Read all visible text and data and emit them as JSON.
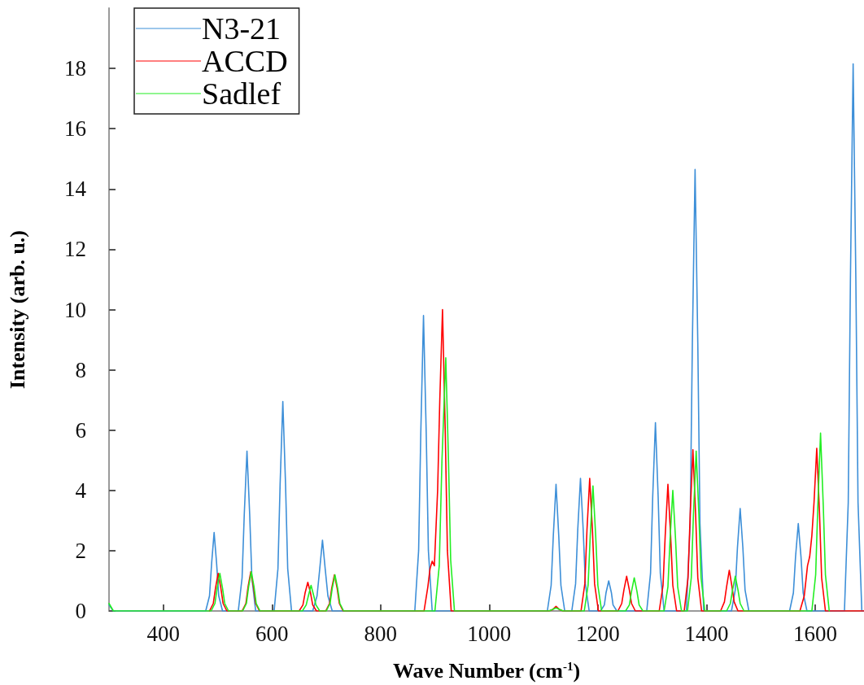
{
  "chart_data": {
    "type": "line",
    "xlabel": "Wave Number (cm$^{-1}$)",
    "ylabel": "Intensity (arb. u.)",
    "xlim": [
      300,
      1690
    ],
    "xticks": [
      400,
      600,
      800,
      1000,
      1200,
      1400,
      1600
    ],
    "ylim": [
      0,
      20
    ],
    "yticks": [
      0,
      2,
      4,
      6,
      8,
      10,
      12,
      14,
      16,
      18
    ],
    "grid": false,
    "legend": "top left",
    "marker": "none",
    "line_style": "solid",
    "series": [
      {
        "name": "N3-21",
        "color": "#3d8fd8",
        "x": [
          300,
          308,
          478,
          485,
          489,
          493.5,
          498,
          502,
          509,
          538,
          545,
          549,
          554,
          559,
          563,
          570,
          604,
          611,
          615,
          620,
          625,
          629,
          636,
          675,
          683,
          688,
          693,
          698,
          703,
          711,
          863,
          870,
          874,
          879,
          884,
          888,
          895,
          1107,
          1114,
          1118,
          1123,
          1128,
          1132,
          1139,
          1152,
          1159,
          1163,
          1168,
          1173,
          1177,
          1184,
          1205,
          1212,
          1215,
          1220,
          1225,
          1228,
          1235,
          1290,
          1297,
          1301,
          1306,
          1311,
          1315,
          1322,
          1363,
          1370,
          1374,
          1379,
          1384,
          1388,
          1395,
          1446,
          1453,
          1457,
          1462,
          1467,
          1471,
          1478,
          1553,
          1560,
          1564,
          1569,
          1574,
          1578,
          1585,
          1654,
          1661,
          1665,
          1670,
          1675,
          1679,
          1686,
          1690
        ],
        "values": [
          0.2,
          0,
          0,
          0.5,
          1.6,
          2.6,
          1.6,
          0.5,
          0,
          0,
          1.1,
          3.2,
          5.3,
          3.2,
          1.1,
          0,
          0,
          1.4,
          4.2,
          6.95,
          4.2,
          1.4,
          0,
          0,
          0.5,
          1.4,
          2.35,
          1.4,
          0.5,
          0,
          0,
          2.0,
          5.9,
          9.8,
          5.9,
          2.0,
          0,
          0,
          0.85,
          2.5,
          4.2,
          2.5,
          0.85,
          0,
          0,
          0.9,
          2.7,
          4.4,
          2.7,
          0.9,
          0,
          0,
          0.2,
          0.6,
          1.0,
          0.6,
          0.2,
          0,
          0,
          1.25,
          3.8,
          6.25,
          3.8,
          1.25,
          0,
          0,
          2.9,
          8.9,
          14.65,
          8.9,
          2.9,
          0,
          0,
          0.7,
          2.1,
          3.4,
          2.1,
          0.7,
          0,
          0,
          0.6,
          1.8,
          2.9,
          1.8,
          0.6,
          0,
          0,
          3.6,
          11.0,
          18.15,
          11.0,
          3.6,
          0,
          0
        ]
      },
      {
        "name": "ACCD",
        "color": "#ff0000",
        "x": [
          485,
          492,
          496,
          501,
          506,
          510,
          517,
          545,
          552,
          556,
          561,
          566,
          570,
          577,
          650,
          657,
          661,
          666,
          671,
          675,
          682,
          699,
          706,
          710,
          715,
          720,
          724,
          731,
          880,
          887,
          891,
          895,
          899,
          905,
          909,
          914,
          919,
          923,
          930,
          1110,
          1117,
          1123,
          1129,
          1136,
          1169,
          1176,
          1180,
          1185,
          1190,
          1194,
          1201,
          1237,
          1244,
          1248,
          1253,
          1258,
          1262,
          1269,
          1313,
          1320,
          1324,
          1329,
          1334,
          1338,
          1345,
          1359,
          1366,
          1370,
          1375,
          1380,
          1384,
          1391,
          1426,
          1433,
          1437,
          1442,
          1447,
          1451,
          1458,
          1572,
          1580,
          1586,
          1590,
          1594,
          1598,
          1603,
          1608,
          1612,
          1619,
          1690
        ],
        "values": [
          0,
          0.25,
          0.75,
          1.25,
          0.75,
          0.25,
          0,
          0,
          0.25,
          0.8,
          1.3,
          0.8,
          0.25,
          0,
          0,
          0.2,
          0.6,
          0.95,
          0.6,
          0.2,
          0,
          0,
          0.25,
          0.75,
          1.2,
          0.75,
          0.25,
          0,
          0,
          0.8,
          1.4,
          1.65,
          1.5,
          4.0,
          7.0,
          10.0,
          6.0,
          2.0,
          0,
          0,
          0.05,
          0.15,
          0.05,
          0,
          0,
          0.9,
          2.7,
          4.4,
          2.7,
          0.9,
          0,
          0,
          0.25,
          0.7,
          1.15,
          0.7,
          0.25,
          0,
          0,
          0.85,
          2.5,
          4.2,
          2.5,
          0.85,
          0,
          0,
          1.1,
          3.2,
          5.35,
          3.2,
          1.1,
          0,
          0,
          0.3,
          0.8,
          1.35,
          0.8,
          0.3,
          0,
          0,
          0.5,
          1.5,
          1.8,
          2.5,
          3.6,
          5.4,
          3.3,
          1.1,
          0,
          0
        ]
      },
      {
        "name": "Sadlef",
        "color": "#22ee22",
        "x": [
          300,
          308,
          488,
          495,
          499,
          504,
          509,
          513,
          520,
          546,
          553,
          557,
          562,
          567,
          571,
          578,
          656,
          663,
          667,
          672,
          677,
          681,
          688,
          700,
          707,
          711,
          716,
          721,
          725,
          732,
          900,
          908,
          913,
          920,
          925,
          929,
          936,
          1110,
          1123,
          1136,
          1175,
          1182,
          1186,
          1191,
          1196,
          1200,
          1207,
          1251,
          1258,
          1262,
          1267,
          1272,
          1276,
          1283,
          1322,
          1329,
          1333,
          1338,
          1343,
          1347,
          1354,
          1365,
          1372,
          1376,
          1381,
          1386,
          1390,
          1397,
          1437,
          1444,
          1448,
          1453,
          1458,
          1462,
          1469,
          1594,
          1601,
          1605,
          1610,
          1615,
          1619,
          1626
        ],
        "values": [
          0.25,
          0,
          0,
          0.25,
          0.75,
          1.25,
          0.75,
          0.25,
          0,
          0,
          0.25,
          0.8,
          1.3,
          0.8,
          0.25,
          0,
          0,
          0.2,
          0.5,
          0.85,
          0.5,
          0.2,
          0,
          0,
          0.25,
          0.75,
          1.2,
          0.75,
          0.25,
          0,
          0,
          1.5,
          5.0,
          8.4,
          5.0,
          1.7,
          0,
          0,
          0.1,
          0,
          0,
          0.85,
          2.5,
          4.15,
          2.5,
          0.85,
          0,
          0,
          0.2,
          0.65,
          1.1,
          0.65,
          0.2,
          0,
          0,
          0.8,
          2.4,
          4.0,
          2.4,
          0.8,
          0,
          0,
          1.1,
          3.2,
          5.3,
          3.2,
          1.1,
          0,
          0,
          0.25,
          0.7,
          1.15,
          0.7,
          0.25,
          0,
          0,
          1.2,
          3.5,
          5.9,
          3.5,
          1.2,
          0
        ]
      }
    ]
  }
}
